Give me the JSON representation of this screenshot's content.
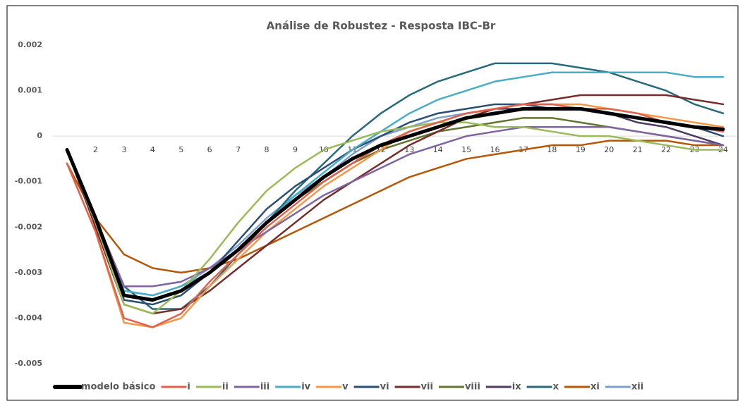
{
  "chart_data": {
    "type": "line",
    "title": "Análise de Robustez - Resposta IBC-Br",
    "categories": [
      null,
      "2",
      "3",
      "4",
      "5",
      "6",
      "7",
      "8",
      "9",
      "10",
      "11",
      "12",
      "13",
      "14",
      "15",
      "16",
      "17",
      "18",
      "19",
      "20",
      "21",
      "22",
      "23",
      "24"
    ],
    "ylim": [
      -0.005,
      0.002
    ],
    "yticks": [
      0.002,
      0.001,
      0,
      -0.001,
      -0.002,
      -0.003,
      -0.004,
      -0.005
    ],
    "grid": false,
    "legend": "bottom",
    "series": [
      {
        "name": "modelo básico",
        "color": "#000000",
        "values": [
          -0.0003,
          -0.0018,
          -0.0035,
          -0.0036,
          -0.0034,
          -0.003,
          -0.0025,
          -0.0019,
          -0.0014,
          -0.0009,
          -0.0005,
          -0.0002,
          0.0,
          0.0002,
          0.0004,
          0.0005,
          0.0006,
          0.0006,
          0.0006,
          0.0005,
          0.0004,
          0.0003,
          0.0002,
          0.00015
        ]
      },
      {
        "name": "i",
        "color": "#e0614d",
        "values": [
          -0.0006,
          -0.0021,
          -0.004,
          -0.0042,
          -0.0039,
          -0.0032,
          -0.0026,
          -0.002,
          -0.0015,
          -0.001,
          -0.0006,
          -0.0002,
          0.0001,
          0.0003,
          0.0005,
          0.0006,
          0.0007,
          0.0007,
          0.0006,
          0.0006,
          0.0005,
          0.0003,
          0.0002,
          0.0001
        ]
      },
      {
        "name": "ii",
        "color": "#9bbb59",
        "values": [
          -0.0003,
          -0.0019,
          -0.0037,
          -0.0039,
          -0.0034,
          -0.0027,
          -0.0019,
          -0.0012,
          -0.0007,
          -0.0003,
          -0.0001,
          0.0001,
          0.0002,
          0.0003,
          0.0003,
          0.0002,
          0.0002,
          0.0001,
          0.0,
          0.0,
          -0.0001,
          -0.0002,
          -0.0003,
          -0.0003
        ]
      },
      {
        "name": "iii",
        "color": "#8064a2",
        "values": [
          -0.0003,
          -0.0018,
          -0.0033,
          -0.0033,
          -0.0032,
          -0.0029,
          -0.0025,
          -0.0021,
          -0.0017,
          -0.0013,
          -0.001,
          -0.0007,
          -0.0004,
          -0.0002,
          0.0,
          0.0001,
          0.0002,
          0.0002,
          0.0002,
          0.0002,
          0.0001,
          0.0,
          -0.0001,
          -0.0002
        ]
      },
      {
        "name": "iv",
        "color": "#4bacc6",
        "values": [
          -0.0003,
          -0.0018,
          -0.0034,
          -0.0035,
          -0.0033,
          -0.003,
          -0.0025,
          -0.0019,
          -0.0013,
          -0.0008,
          -0.0003,
          0.0001,
          0.0005,
          0.0008,
          0.001,
          0.0012,
          0.0013,
          0.0014,
          0.0014,
          0.0014,
          0.0014,
          0.0014,
          0.0013,
          0.0013
        ]
      },
      {
        "name": "v",
        "color": "#f79646",
        "values": [
          -0.0006,
          -0.0021,
          -0.0041,
          -0.0042,
          -0.004,
          -0.0033,
          -0.0027,
          -0.0021,
          -0.0016,
          -0.0011,
          -0.0007,
          -0.0003,
          0.0001,
          0.0003,
          0.0005,
          0.0006,
          0.0007,
          0.0007,
          0.0007,
          0.0006,
          0.0005,
          0.0004,
          0.0003,
          0.0002
        ]
      },
      {
        "name": "vi",
        "color": "#2c4d75",
        "values": [
          -0.0003,
          -0.0019,
          -0.0036,
          -0.0037,
          -0.0035,
          -0.003,
          -0.0023,
          -0.0016,
          -0.0011,
          -0.0007,
          -0.0003,
          0.0,
          0.0003,
          0.0005,
          0.0006,
          0.0007,
          0.0007,
          0.0006,
          0.0006,
          0.0005,
          0.0004,
          0.0003,
          0.0002,
          0.0
        ]
      },
      {
        "name": "vii",
        "color": "#772c2a",
        "values": [
          -0.0003,
          -0.002,
          -0.0037,
          -0.0039,
          -0.0038,
          -0.0034,
          -0.0029,
          -0.0024,
          -0.0019,
          -0.0014,
          -0.001,
          -0.0006,
          -0.0002,
          0.0001,
          0.0004,
          0.0006,
          0.0007,
          0.0008,
          0.0009,
          0.0009,
          0.0009,
          0.0009,
          0.0008,
          0.0007
        ]
      },
      {
        "name": "viii",
        "color": "#5f7530",
        "values": [
          -0.0003,
          -0.0019,
          -0.0035,
          -0.0036,
          -0.0034,
          -0.003,
          -0.0025,
          -0.0019,
          -0.0014,
          -0.001,
          -0.0006,
          -0.0003,
          -0.0001,
          0.0001,
          0.0002,
          0.0003,
          0.0004,
          0.0004,
          0.0003,
          0.0002,
          0.0001,
          0.0,
          -0.0001,
          -0.0002
        ]
      },
      {
        "name": "ix",
        "color": "#4d3b62",
        "values": [
          -0.0003,
          -0.0019,
          -0.0035,
          -0.0036,
          -0.0034,
          -0.003,
          -0.0025,
          -0.0019,
          -0.0014,
          -0.001,
          -0.0006,
          -0.0002,
          0.0001,
          0.0003,
          0.0005,
          0.0006,
          0.0006,
          0.0006,
          0.0006,
          0.0005,
          0.0003,
          0.0002,
          0.0,
          -0.0002
        ]
      },
      {
        "name": "x",
        "color": "#276a7c",
        "values": [
          -0.0003,
          -0.0018,
          -0.0033,
          -0.0038,
          -0.0038,
          -0.0033,
          -0.0026,
          -0.0019,
          -0.0012,
          -0.0006,
          0.0,
          0.0005,
          0.0009,
          0.0012,
          0.0014,
          0.0016,
          0.0016,
          0.0016,
          0.0015,
          0.0014,
          0.0012,
          0.001,
          0.0007,
          0.0005
        ]
      },
      {
        "name": "xi",
        "color": "#b65708",
        "values": [
          -0.0006,
          -0.0018,
          -0.0026,
          -0.0029,
          -0.003,
          -0.0029,
          -0.0027,
          -0.0024,
          -0.0021,
          -0.0018,
          -0.0015,
          -0.0012,
          -0.0009,
          -0.0007,
          -0.0005,
          -0.0004,
          -0.0003,
          -0.0002,
          -0.0002,
          -0.0001,
          -0.0001,
          -0.0001,
          -0.0002,
          -0.0002
        ]
      },
      {
        "name": "xii",
        "color": "#7f9fd1",
        "values": [
          -0.0003,
          -0.0018,
          -0.0034,
          -0.0035,
          -0.0033,
          -0.0029,
          -0.0024,
          -0.0018,
          -0.0013,
          -0.0009,
          -0.0004,
          0.0,
          0.0002,
          0.0004,
          0.0005,
          0.0006,
          0.0007,
          0.0007,
          0.0006,
          0.0005,
          0.0004,
          0.0003,
          0.0002,
          0.0001
        ]
      }
    ]
  }
}
